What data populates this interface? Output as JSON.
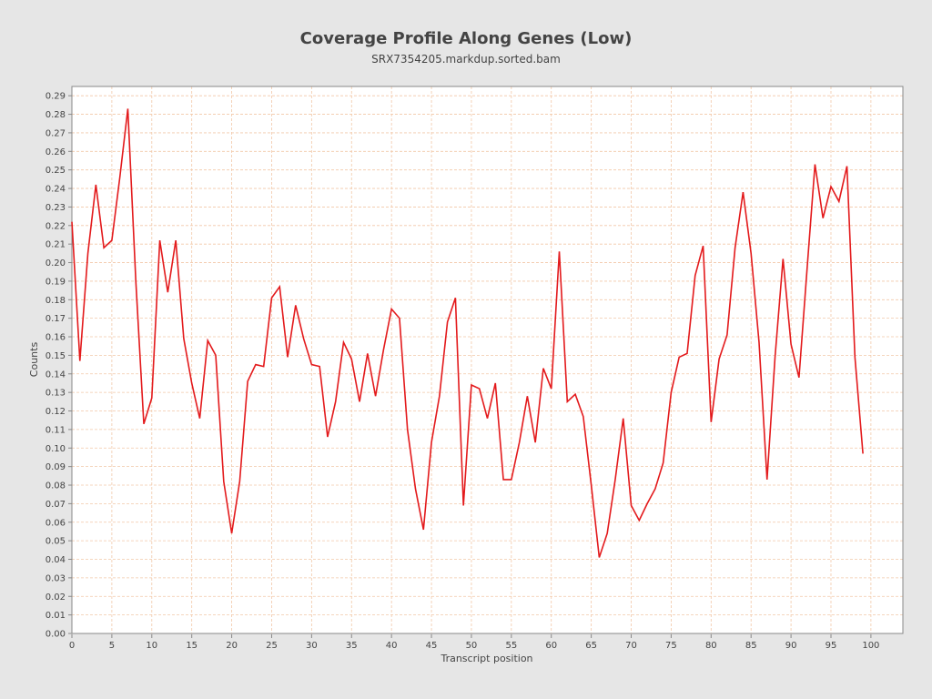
{
  "chart_data": {
    "type": "line",
    "title": "Coverage Profile Along Genes (Low)",
    "subtitle": "SRX7354205.markdup.sorted.bam",
    "xlabel": "Transcript position",
    "ylabel": "Counts",
    "xlim": [
      0,
      104
    ],
    "ylim": [
      0,
      0.295
    ],
    "x_ticks": [
      0,
      5,
      10,
      15,
      20,
      25,
      30,
      35,
      40,
      45,
      50,
      55,
      60,
      65,
      70,
      75,
      80,
      85,
      90,
      95,
      100
    ],
    "x_tick_labels": [
      "0",
      "5",
      "10",
      "15",
      "20",
      "25",
      "30",
      "35",
      "40",
      "45",
      "50",
      "55",
      "60",
      "65",
      "70",
      "75",
      "80",
      "85",
      "90",
      "95",
      "100"
    ],
    "y_ticks": [
      0,
      0.01,
      0.02,
      0.03,
      0.04,
      0.05,
      0.06,
      0.07,
      0.08,
      0.09,
      0.1,
      0.11,
      0.12,
      0.13,
      0.14,
      0.15,
      0.16,
      0.17,
      0.18,
      0.19,
      0.2,
      0.21,
      0.22,
      0.23,
      0.24,
      0.25,
      0.26,
      0.27,
      0.28,
      0.29
    ],
    "y_tick_labels": [
      "0.00",
      "0.01",
      "0.02",
      "0.03",
      "0.04",
      "0.05",
      "0.06",
      "0.07",
      "0.08",
      "0.09",
      "0.10",
      "0.11",
      "0.12",
      "0.13",
      "0.14",
      "0.15",
      "0.16",
      "0.17",
      "0.18",
      "0.19",
      "0.20",
      "0.21",
      "0.22",
      "0.23",
      "0.24",
      "0.25",
      "0.26",
      "0.27",
      "0.28",
      "0.29"
    ],
    "grid": true,
    "colors": {
      "line": "#e31a1c",
      "grid": "#f2c8a8",
      "plot_background": "#ffffff",
      "page_background": "#e6e6e6",
      "axis": "#888888"
    },
    "series": [
      {
        "x": [
          0,
          1,
          2,
          3,
          4,
          5,
          6,
          7,
          8,
          9,
          10,
          11,
          12,
          13,
          14,
          15,
          16,
          17,
          18,
          19,
          20,
          21,
          22,
          23,
          24,
          25,
          26,
          27,
          28,
          29,
          30,
          31,
          32,
          33,
          34,
          35,
          36,
          37,
          38,
          39,
          40,
          41,
          42,
          43,
          44,
          45,
          46,
          47,
          48,
          49,
          50,
          51,
          52,
          53,
          54,
          55,
          56,
          57,
          58,
          59,
          60,
          61,
          62,
          63,
          64,
          65,
          66,
          67,
          68,
          69,
          70,
          71,
          72,
          73,
          74,
          75,
          76,
          77,
          78,
          79,
          80,
          81,
          82,
          83,
          84,
          85,
          86,
          87,
          88,
          89,
          90,
          91,
          92,
          93,
          94,
          95,
          96,
          97,
          98,
          99
        ],
        "values": [
          0.222,
          0.147,
          0.205,
          0.242,
          0.208,
          0.212,
          0.246,
          0.283,
          0.19,
          0.113,
          0.127,
          0.212,
          0.184,
          0.212,
          0.159,
          0.135,
          0.116,
          0.158,
          0.15,
          0.082,
          0.054,
          0.082,
          0.136,
          0.145,
          0.144,
          0.181,
          0.187,
          0.149,
          0.177,
          0.159,
          0.145,
          0.144,
          0.106,
          0.125,
          0.157,
          0.148,
          0.125,
          0.151,
          0.128,
          0.153,
          0.175,
          0.17,
          0.11,
          0.078,
          0.056,
          0.103,
          0.128,
          0.168,
          0.181,
          0.069,
          0.134,
          0.132,
          0.116,
          0.135,
          0.083,
          0.083,
          0.103,
          0.128,
          0.103,
          0.143,
          0.132,
          0.206,
          0.125,
          0.129,
          0.117,
          0.08,
          0.041,
          0.054,
          0.083,
          0.116,
          0.069,
          0.061,
          0.07,
          0.078,
          0.092,
          0.13,
          0.149,
          0.151,
          0.193,
          0.209,
          0.114,
          0.148,
          0.161,
          0.208,
          0.238,
          0.205,
          0.157,
          0.083,
          0.149,
          0.202,
          0.156,
          0.138,
          0.196,
          0.253,
          0.224,
          0.241,
          0.233,
          0.252,
          0.149,
          0.097
        ]
      }
    ]
  }
}
